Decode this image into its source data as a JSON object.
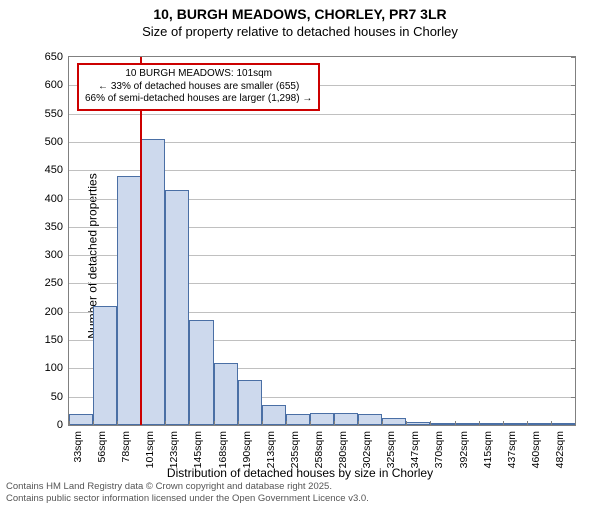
{
  "title_main": "10, BURGH MEADOWS, CHORLEY, PR7 3LR",
  "title_sub": "Size of property relative to detached houses in Chorley",
  "ylabel": "Number of detached properties",
  "xlabel": "Distribution of detached houses by size in Chorley",
  "footer_line1": "Contains HM Land Registry data © Crown copyright and database right 2025.",
  "footer_line2": "Contains public sector information licensed under the Open Government Licence v3.0.",
  "annotation": {
    "line1": "10 BURGH MEADOWS: 101sqm",
    "line2": "← 33% of detached houses are smaller (655)",
    "line3": "66% of semi-detached houses are larger (1,298) →"
  },
  "chart": {
    "type": "histogram",
    "ylim": [
      0,
      650
    ],
    "ytick_step": 50,
    "background_color": "#ffffff",
    "grid_color": "#c0c0c0",
    "bar_fill": "#cdd9ed",
    "bar_border": "#4a6fa5",
    "marker_color": "#cc0000",
    "marker_x_value": 101,
    "categories": [
      "33sqm",
      "56sqm",
      "78sqm",
      "101sqm",
      "123sqm",
      "145sqm",
      "168sqm",
      "190sqm",
      "213sqm",
      "235sqm",
      "258sqm",
      "280sqm",
      "302sqm",
      "325sqm",
      "347sqm",
      "370sqm",
      "392sqm",
      "415sqm",
      "437sqm",
      "460sqm",
      "482sqm"
    ],
    "values": [
      20,
      210,
      440,
      505,
      415,
      185,
      110,
      80,
      35,
      20,
      22,
      22,
      20,
      12,
      6,
      4,
      3,
      2,
      2,
      1,
      1
    ],
    "annotation_box": {
      "border_color": "#cc0000",
      "background": "#ffffff",
      "font_size": 10
    },
    "title_fontsize": 14,
    "subtitle_fontsize": 13,
    "label_fontsize": 12,
    "tick_fontsize": 11
  }
}
